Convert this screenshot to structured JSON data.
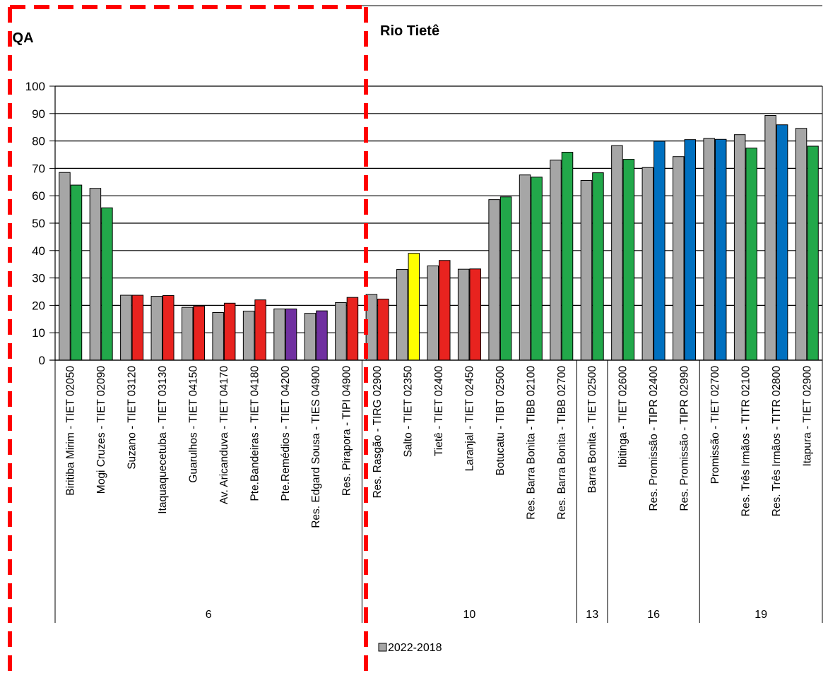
{
  "chart_data": {
    "type": "bar",
    "title": "Rio Tietê",
    "ylabel": "IQA",
    "xlabel": "",
    "ylim": [
      0,
      100
    ],
    "yticks": [
      "0",
      "10",
      "20",
      "30",
      "40",
      "50",
      "60",
      "70",
      "80",
      "90",
      "100"
    ],
    "grid": true,
    "legend": {
      "entries": [
        "2022-2018"
      ],
      "placement": "bottom-center"
    },
    "colors": {
      "gray": "#a6a6a6",
      "green": "#22a84a",
      "red": "#e8231f",
      "purple": "#7030a0",
      "yellow": "#ffff00",
      "blue": "#0070c0",
      "highlight_box": "#ff0000"
    },
    "categories": [
      "Biritiba Mirim - TIET 02050",
      "Mogi Cruzes - TIET 02090",
      "Suzano - TIET 03120",
      "Itaquaquecetuba - TIET 03130",
      "Guarulhos - TIET 04150",
      "Av. Aricanduva - TIET 04170",
      "Pte.Bandeiras - TIET 04180",
      "Pte.Remédios - TIET 04200",
      "Res. Edgard Sousa - TIES 04900",
      "Res. Pirapora - TIPI 04900",
      "Res. Rasgão - TIRG 02900",
      "Salto - TIET 02350",
      "Tietê - TIET 02400",
      "Laranjal - TIET 02450",
      "Botucatu - TIBT 02500",
      "Res. Barra Bonita - TIBB 02100",
      "Res. Barra Bonita - TIBB 02700",
      "Barra Bonita - TIET 02500",
      "Ibitinga - TIET 02600",
      "Res. Promissão - TIPR 02400",
      "Res. Promissão - TIPR 02990",
      "Promissão - TIET 02700",
      "Res. Três Irmãos - TITR 02100",
      "Res. Três Irmãos - TITR 02800",
      "Itapura - TIET 02900"
    ],
    "groups": [
      {
        "label": "6",
        "count": 10
      },
      {
        "label": "10",
        "count": 7
      },
      {
        "label": "13",
        "count": 1
      },
      {
        "label": "16",
        "count": 3
      },
      {
        "label": "19",
        "count": 4
      }
    ],
    "series": [
      {
        "name": "2022-2018",
        "color": "#a6a6a6",
        "values": [
          68.5,
          62.7,
          23.7,
          23.3,
          19.3,
          17.4,
          17.9,
          18.7,
          17.1,
          21.0,
          24.0,
          33.1,
          34.4,
          33.2,
          58.6,
          67.6,
          73.0,
          65.6,
          78.3,
          70.3,
          74.3,
          80.9,
          82.3,
          89.3,
          84.6
        ]
      },
      {
        "name": "",
        "values": [
          63.9,
          55.6,
          23.7,
          23.6,
          19.7,
          20.8,
          22.0,
          18.7,
          18.0,
          22.9,
          22.3,
          39.0,
          36.4,
          33.3,
          59.6,
          66.8,
          75.9,
          68.4,
          73.3,
          79.9,
          80.5,
          80.6,
          77.4,
          85.9,
          78.1
        ],
        "value_colors": [
          "green",
          "green",
          "red",
          "red",
          "red",
          "red",
          "red",
          "purple",
          "purple",
          "red",
          "red",
          "yellow",
          "red",
          "red",
          "green",
          "green",
          "green",
          "green",
          "green",
          "blue",
          "blue",
          "blue",
          "green",
          "blue",
          "green"
        ]
      }
    ]
  }
}
